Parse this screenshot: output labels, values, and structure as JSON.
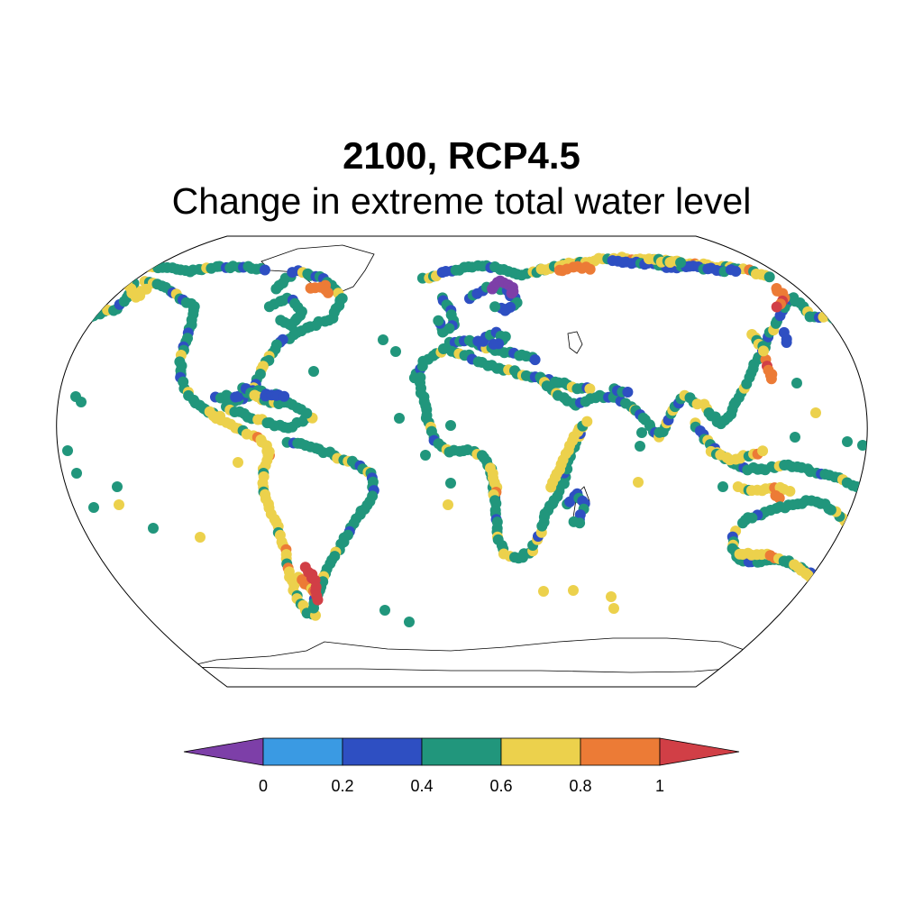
{
  "title": "2100, RCP4.5",
  "subtitle": "Change in extreme total water level",
  "legend": {
    "ticks": [
      "0",
      "0.2",
      "0.4",
      "0.6",
      "0.8",
      "1"
    ],
    "bins": [
      {
        "range": "< 0",
        "color": "#7d3fa8"
      },
      {
        "range": "0 – 0.2",
        "color": "#3a9ae3"
      },
      {
        "range": "0.2 – 0.4",
        "color": "#2e4fc2"
      },
      {
        "range": "0.4 – 0.6",
        "color": "#21967c"
      },
      {
        "range": "0.6 – 0.8",
        "color": "#ecd14c"
      },
      {
        "range": "0.8 – 1",
        "color": "#ec7b36"
      },
      {
        "range": "> 1",
        "color": "#d13f46"
      }
    ]
  },
  "map": {
    "projection": "Robinson",
    "marker_style": "filled circles along global coastlines"
  }
}
